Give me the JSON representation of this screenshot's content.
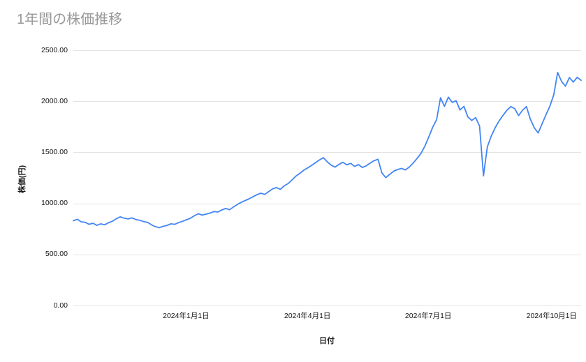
{
  "chart": {
    "title": "1年間の株価推移",
    "x_axis_title": "日付",
    "y_axis_title": "株価(円)"
  },
  "chart_data": {
    "type": "line",
    "title": "1年間の株価推移",
    "xlabel": "日付",
    "ylabel": "株価(円)",
    "ylim": [
      0,
      2500
    ],
    "grid": true,
    "legend": "none",
    "line_color": "#4285f4",
    "background_color": "#ffffff",
    "y_ticks": [
      "0.00",
      "500.00",
      "1000.00",
      "1500.00",
      "2000.00",
      "2500.00"
    ],
    "y_tick_values": [
      0,
      500,
      1000,
      1500,
      2000,
      2500
    ],
    "x_ticks": [
      {
        "label": "2024年1月1日",
        "pos": 0.222
      },
      {
        "label": "2024年4月1日",
        "pos": 0.461
      },
      {
        "label": "2024年7月1日",
        "pos": 0.699
      },
      {
        "label": "2024年10月1日",
        "pos": 0.942
      }
    ],
    "x_note": "series spans roughly one year ending shortly after 2024年10月1日; values estimated from plot at uniform intervals",
    "values": [
      830,
      845,
      820,
      815,
      795,
      805,
      785,
      800,
      790,
      810,
      825,
      850,
      868,
      855,
      848,
      858,
      842,
      835,
      822,
      815,
      790,
      772,
      762,
      775,
      785,
      800,
      795,
      812,
      825,
      840,
      855,
      880,
      898,
      885,
      895,
      905,
      920,
      915,
      935,
      950,
      938,
      965,
      990,
      1010,
      1028,
      1045,
      1065,
      1085,
      1100,
      1088,
      1115,
      1142,
      1155,
      1138,
      1172,
      1195,
      1230,
      1268,
      1295,
      1325,
      1348,
      1372,
      1398,
      1425,
      1448,
      1408,
      1375,
      1355,
      1382,
      1402,
      1378,
      1392,
      1362,
      1380,
      1352,
      1368,
      1395,
      1418,
      1432,
      1298,
      1252,
      1285,
      1315,
      1332,
      1342,
      1328,
      1355,
      1395,
      1440,
      1490,
      1560,
      1650,
      1745,
      1820,
      2035,
      1950,
      2040,
      1990,
      2005,
      1915,
      1950,
      1848,
      1812,
      1840,
      1758,
      1270,
      1555,
      1660,
      1742,
      1808,
      1862,
      1912,
      1948,
      1928,
      1860,
      1912,
      1948,
      1825,
      1742,
      1690,
      1778,
      1868,
      1952,
      2065,
      2282,
      2195,
      2148,
      2232,
      2188,
      2235,
      2205
    ]
  }
}
